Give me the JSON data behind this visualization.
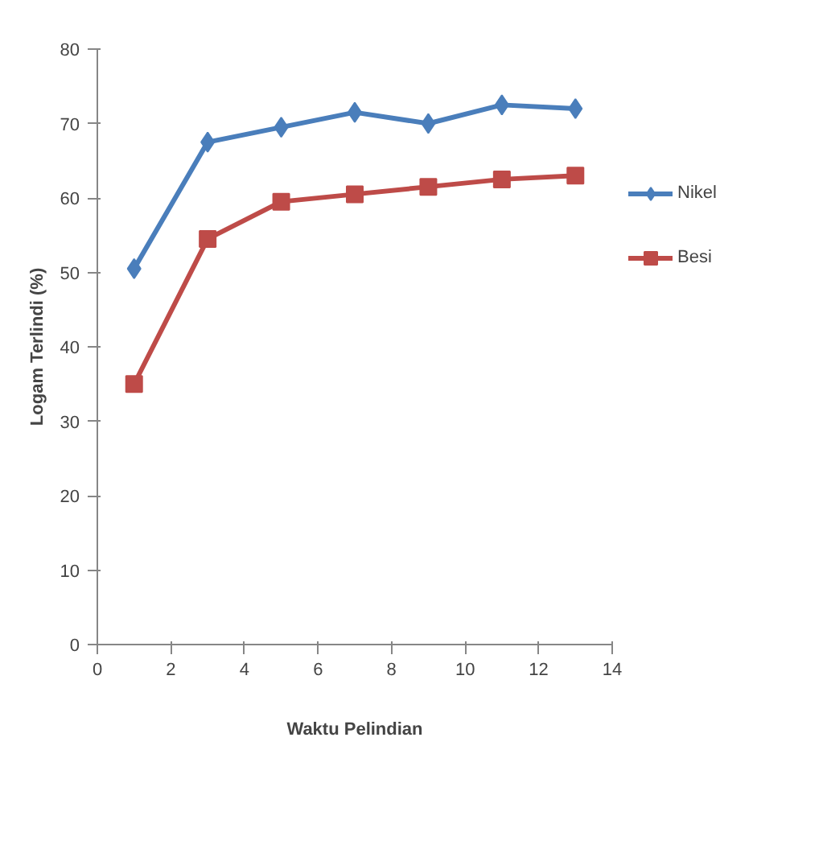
{
  "chart_data": {
    "type": "line",
    "xlabel": "Waktu Pelindian",
    "ylabel": "Logam Terlindi (%)",
    "xlim": [
      0,
      14
    ],
    "xticks": [
      0,
      2,
      4,
      6,
      8,
      10,
      12,
      14
    ],
    "ylim": [
      0,
      80
    ],
    "yticks": [
      0,
      10,
      20,
      30,
      40,
      50,
      60,
      70,
      80
    ],
    "x": [
      1,
      3,
      5,
      7,
      9,
      11,
      13
    ],
    "series": [
      {
        "name": "Nikel",
        "color": "#4a7ebb",
        "marker": "diamond",
        "values": [
          50.5,
          67.5,
          69.5,
          71.5,
          70,
          72.5,
          72
        ]
      },
      {
        "name": "Besi",
        "color": "#be4b48",
        "marker": "square",
        "values": [
          35,
          54.5,
          59.5,
          60.5,
          61.5,
          62.5,
          63
        ]
      }
    ],
    "grid": false,
    "legend": "right"
  }
}
